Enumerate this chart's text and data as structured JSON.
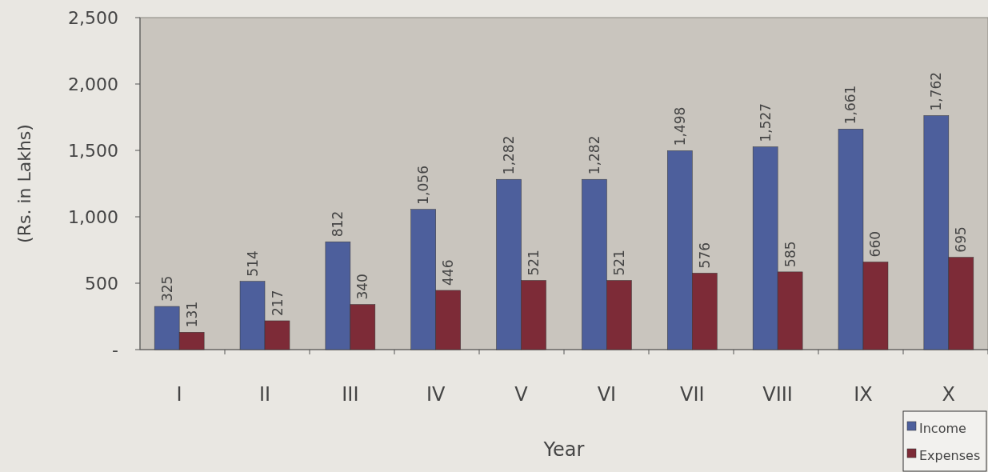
{
  "chart_data": {
    "type": "bar",
    "xlabel": "Year",
    "ylabel": "(Rs. in Lakhs)",
    "categories": [
      "I",
      "II",
      "III",
      "IV",
      "V",
      "VI",
      "VII",
      "VIII",
      "IX",
      "X"
    ],
    "series": [
      {
        "name": "Income",
        "color": "#4d5f9c",
        "values": [
          325,
          514,
          812,
          1056,
          1282,
          1282,
          1498,
          1527,
          1661,
          1762
        ],
        "value_labels": [
          "325",
          "514",
          "812",
          "1,056",
          "1,282",
          "1,282",
          "1,498",
          "1,527",
          "1,661",
          "1,762"
        ]
      },
      {
        "name": "Expenses",
        "color": "#7d2b37",
        "values": [
          131,
          217,
          340,
          446,
          521,
          521,
          576,
          585,
          660,
          695
        ],
        "value_labels": [
          "131",
          "217",
          "340",
          "446",
          "521",
          "521",
          "576",
          "585",
          "660",
          "695"
        ]
      }
    ],
    "ylim": [
      0,
      2500
    ],
    "yticks": [
      {
        "value": 0,
        "label": "-"
      },
      {
        "value": 500,
        "label": "500"
      },
      {
        "value": 1000,
        "label": "1,000"
      },
      {
        "value": 1500,
        "label": "1,500"
      },
      {
        "value": 2000,
        "label": "2,000"
      },
      {
        "value": 2500,
        "label": "2,500"
      }
    ],
    "grid": false,
    "legend": "bottom right"
  }
}
